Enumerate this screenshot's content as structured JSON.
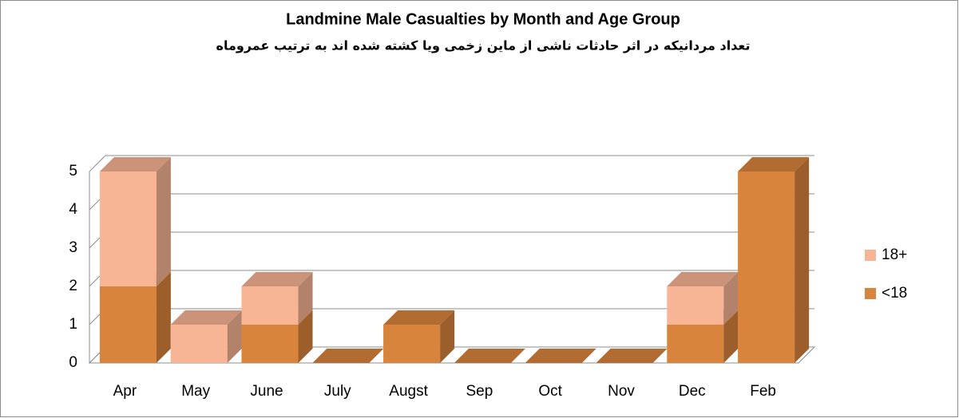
{
  "chart_data": {
    "type": "bar3d_stacked",
    "title": "Landmine Male Casualties by Month and Age Group",
    "subtitle": "تعداد مردانیکه در اثر حادثات ناشی از ماین زخمی ویا کشته شده اند به ترتیب عمروماه",
    "categories": [
      "Apr",
      "May",
      "June",
      "July",
      "Augst",
      "Sep",
      "Oct",
      "Nov",
      "Dec",
      "Feb"
    ],
    "series": [
      {
        "name": "<18",
        "color": "#d9843c",
        "values": [
          2,
          0,
          1,
          0,
          1,
          0,
          0,
          0,
          1,
          5
        ]
      },
      {
        "name": "18+",
        "color": "#f8b595",
        "values": [
          3,
          1,
          1,
          0,
          0,
          0,
          0,
          0,
          1,
          0
        ]
      }
    ],
    "ylim": [
      0,
      5
    ],
    "yticks": [
      0,
      1,
      2,
      3,
      4,
      5
    ],
    "grid": true,
    "legend": "right"
  }
}
